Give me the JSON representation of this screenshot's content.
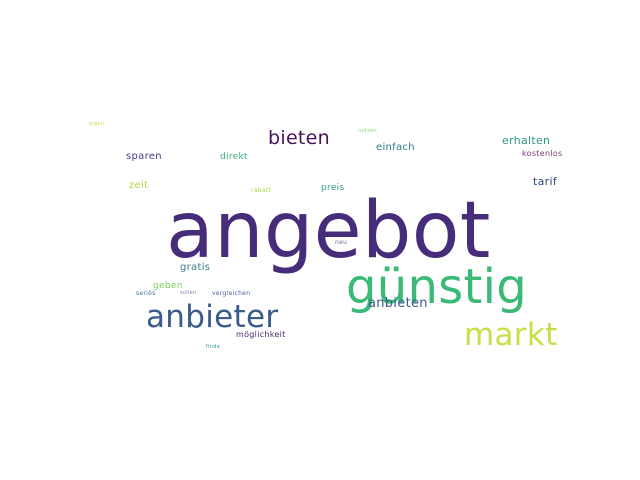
{
  "wordcloud": {
    "words": [
      {
        "text": "angebot",
        "color": "#472c7a"
      },
      {
        "text": "günstig",
        "color": "#3aba76"
      },
      {
        "text": "anbieter",
        "color": "#3b5c8a"
      },
      {
        "text": "markt",
        "color": "#c6e04a"
      },
      {
        "text": "bieten",
        "color": "#46125a"
      },
      {
        "text": "anbieten",
        "color": "#3a5b8b"
      },
      {
        "text": "erhalten",
        "color": "#2c9a88"
      },
      {
        "text": "einfach",
        "color": "#2b7b8c"
      },
      {
        "text": "sparen",
        "color": "#433e85"
      },
      {
        "text": "direkt",
        "color": "#35b07a"
      },
      {
        "text": "kostenlos",
        "color": "#7a3b7a"
      },
      {
        "text": "tarif",
        "color": "#2a4b76"
      },
      {
        "text": "zeit",
        "color": "#b0d840"
      },
      {
        "text": "preis",
        "color": "#2f9f86"
      },
      {
        "text": "rabatt",
        "color": "#a8d84c"
      },
      {
        "text": "neu",
        "color": "#6b6b9c"
      },
      {
        "text": "gratis",
        "color": "#3b7e8f"
      },
      {
        "text": "geben",
        "color": "#7ccf5f"
      },
      {
        "text": "seriös",
        "color": "#3b6b9c"
      },
      {
        "text": "sollen",
        "color": "#7d7da8"
      },
      {
        "text": "vergleichen",
        "color": "#4a5b9c"
      },
      {
        "text": "möglichkeit",
        "color": "#472a6b"
      },
      {
        "text": "nutzen",
        "color": "#8cd46a"
      },
      {
        "text": "eigen",
        "color": "#c9e24a"
      },
      {
        "text": "finde",
        "color": "#2f9a96"
      }
    ]
  }
}
